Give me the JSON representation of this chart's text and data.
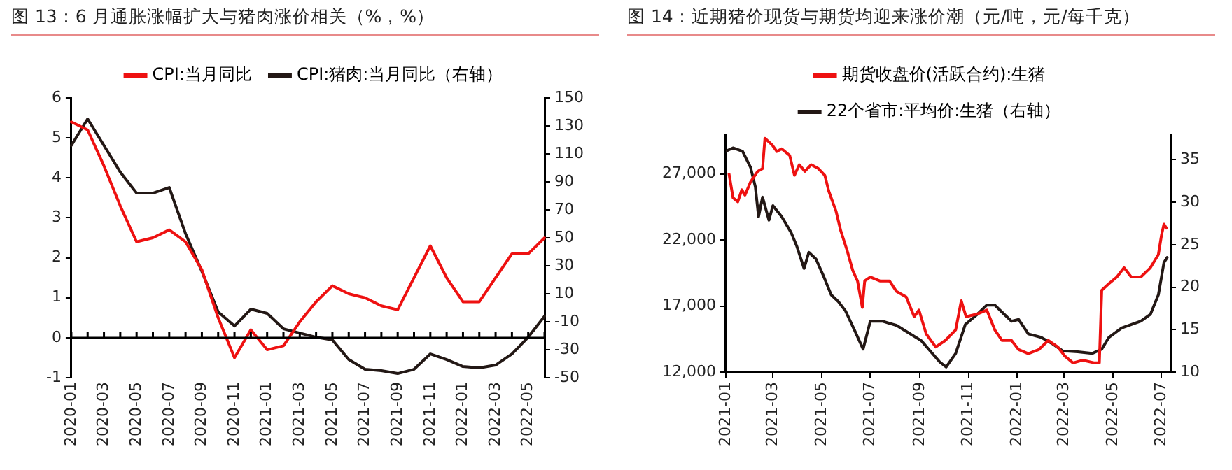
{
  "chart_data": [
    {
      "type": "line",
      "title": "图 13：6 月通胀涨幅扩大与猪肉涨价相关（%，%）",
      "categories": [
        "2020-01",
        null,
        "2020-03",
        null,
        "2020-05",
        null,
        "2020-07",
        null,
        "2020-09",
        null,
        "2020-11",
        null,
        "2021-01",
        null,
        "2021-03",
        null,
        "2021-05",
        null,
        "2021-07",
        null,
        "2021-09",
        null,
        "2021-11",
        null,
        "2022-01",
        null,
        "2022-03",
        null,
        "2022-05",
        null
      ],
      "series": [
        {
          "name": "CPI:当月同比",
          "color": "#ee1111",
          "values": [
            5.4,
            5.2,
            4.3,
            3.3,
            2.4,
            2.5,
            2.7,
            2.4,
            1.7,
            0.5,
            -0.5,
            0.2,
            -0.3,
            -0.2,
            0.4,
            0.9,
            1.3,
            1.1,
            1.0,
            0.8,
            0.7,
            1.5,
            2.3,
            1.5,
            0.9,
            0.9,
            1.5,
            2.1,
            2.1,
            2.5
          ]
        },
        {
          "name": "CPI:猪肉:当月同比（右轴）",
          "color": "#231815",
          "axis": "y2",
          "values": [
            116,
            135,
            116,
            97,
            82,
            82,
            86,
            53,
            26,
            -3,
            -13,
            -1,
            -4,
            -15,
            -18,
            -21,
            -23,
            -37,
            -44,
            -45,
            -47,
            -44,
            -33,
            -37,
            -42,
            -43,
            -41,
            -33,
            -21,
            -6
          ]
        }
      ],
      "ylim": [
        -1,
        6
      ],
      "yticks": [
        -1,
        0,
        1,
        2,
        3,
        4,
        5,
        6
      ],
      "y2lim": [
        -50,
        150
      ],
      "y2ticks": [
        -50,
        -30,
        -10,
        10,
        30,
        50,
        70,
        90,
        110,
        130,
        150
      ],
      "ref_lines": [
        {
          "axis": "y",
          "value": 0,
          "color": "#000000"
        }
      ],
      "legend": "top"
    },
    {
      "type": "line",
      "title": "图 14：近期猪价现货与期货均迎来涨价潮（元/吨，元/每千克）",
      "series": [
        {
          "name": "期货收盘价(活跃合约):生猪",
          "color": "#ee1111",
          "x": [
            "2021-01-05",
            "2021-01-10",
            "2021-01-16",
            "2021-01-21",
            "2021-01-25",
            "2021-02-01",
            "2021-02-10",
            "2021-02-16",
            "2021-02-19",
            "2021-02-28",
            "2021-03-06",
            "2021-03-12",
            "2021-03-22",
            "2021-03-28",
            "2021-04-03",
            "2021-04-10",
            "2021-04-18",
            "2021-04-27",
            "2021-05-05",
            "2021-05-10",
            "2021-05-19",
            "2021-05-25",
            "2021-06-02",
            "2021-06-09",
            "2021-06-15",
            "2021-06-21",
            "2021-06-24",
            "2021-07-01",
            "2021-07-13",
            "2021-07-25",
            "2021-08-03",
            "2021-08-15",
            "2021-08-25",
            "2021-08-31",
            "2021-09-09",
            "2021-09-21",
            "2021-10-03",
            "2021-10-16",
            "2021-10-23",
            "2021-10-29",
            "2021-11-12",
            "2021-11-24",
            "2021-12-04",
            "2021-12-13",
            "2021-12-25",
            "2022-01-03",
            "2022-01-15",
            "2022-01-28",
            "2022-02-09",
            "2022-02-21",
            "2022-03-02",
            "2022-03-12",
            "2022-03-24",
            "2022-04-08",
            "2022-04-14",
            "2022-04-17",
            "2022-04-26",
            "2022-05-06",
            "2022-05-15",
            "2022-05-24",
            "2022-06-05",
            "2022-06-17",
            "2022-06-27",
            "2022-07-01",
            "2022-07-04",
            "2022-07-07"
          ],
          "values": [
            27000,
            25200,
            24900,
            25800,
            25400,
            26400,
            27200,
            27400,
            29700,
            29200,
            28700,
            28900,
            28400,
            26900,
            27700,
            27200,
            27700,
            27400,
            26900,
            25700,
            24200,
            22700,
            21200,
            19700,
            18900,
            16900,
            18900,
            19200,
            18900,
            18900,
            18100,
            17700,
            16200,
            16700,
            14900,
            13900,
            14400,
            15200,
            17400,
            16200,
            16400,
            16700,
            15200,
            14400,
            14400,
            13700,
            13400,
            13700,
            14400,
            13900,
            13200,
            12700,
            12900,
            12700,
            12700,
            18200,
            18700,
            19200,
            19900,
            19200,
            19200,
            19900,
            20900,
            22400,
            23200,
            22900
          ]
        },
        {
          "name": "22个省市:平均价:生猪（右轴）",
          "color": "#231815",
          "axis": "y2",
          "x": [
            "2021-01-01",
            "2021-01-10",
            "2021-01-22",
            "2021-02-01",
            "2021-02-07",
            "2021-02-11",
            "2021-02-16",
            "2021-02-24",
            "2021-03-01",
            "2021-03-12",
            "2021-03-24",
            "2021-03-31",
            "2021-04-09",
            "2021-04-15",
            "2021-04-24",
            "2021-05-03",
            "2021-05-13",
            "2021-05-22",
            "2021-05-31",
            "2021-06-12",
            "2021-06-22",
            "2021-07-01",
            "2021-07-16",
            "2021-08-03",
            "2021-08-15",
            "2021-09-03",
            "2021-09-14",
            "2021-09-26",
            "2021-10-04",
            "2021-10-16",
            "2021-10-28",
            "2021-11-12",
            "2021-11-24",
            "2021-12-04",
            "2021-12-16",
            "2021-12-25",
            "2022-01-03",
            "2022-01-15",
            "2022-01-31",
            "2022-02-15",
            "2022-02-27",
            "2022-03-18",
            "2022-04-05",
            "2022-04-17",
            "2022-04-26",
            "2022-05-12",
            "2022-06-05",
            "2022-06-17",
            "2022-06-27",
            "2022-07-04",
            "2022-07-08"
          ],
          "values": [
            36.0,
            36.4,
            36.0,
            34.1,
            31.8,
            28.3,
            30.6,
            27.9,
            29.6,
            28.3,
            26.4,
            24.8,
            22.2,
            24.1,
            23.3,
            21.4,
            19.1,
            18.3,
            17.2,
            14.8,
            12.7,
            16.0,
            16.0,
            15.5,
            14.8,
            13.7,
            12.5,
            11.2,
            10.6,
            12.2,
            15.6,
            16.8,
            17.9,
            17.9,
            16.8,
            16.0,
            16.2,
            14.5,
            14.1,
            13.3,
            12.5,
            12.4,
            12.2,
            12.7,
            14.1,
            15.2,
            16.0,
            16.8,
            19.1,
            22.9,
            23.5
          ]
        }
      ],
      "xlim": [
        "2021-01-01",
        "2022-07-12"
      ],
      "xticks": [
        "2021-01",
        "2021-03",
        "2021-05",
        "2021-07",
        "2021-09",
        "2021-11",
        "2022-01",
        "2022-03",
        "2022-05",
        "2022-07"
      ],
      "ylim": [
        12000,
        30000
      ],
      "yticks": [
        {
          "value": 12000,
          "label": "12,000"
        },
        {
          "value": 17000,
          "label": "17,000"
        },
        {
          "value": 22000,
          "label": "22,000"
        },
        {
          "value": 27000,
          "label": "27,000"
        }
      ],
      "y2lim": [
        10,
        38
      ],
      "y2ticks": [
        10,
        15,
        20,
        25,
        30,
        35
      ],
      "legend": "top"
    }
  ]
}
